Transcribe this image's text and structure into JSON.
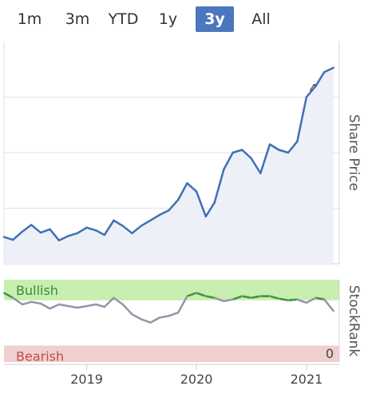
{
  "range_selector": {
    "buttons": [
      "1m",
      "3m",
      "YTD",
      "1y",
      "3y",
      "All"
    ],
    "selected": "3y"
  },
  "chart_data": [
    {
      "type": "line",
      "ylabel": "Share Price",
      "ylim": [
        100,
        500
      ],
      "yticks": [
        100,
        200,
        300,
        400
      ],
      "line_color": "#3f70b5",
      "fill_color": "#eef0f8",
      "x": [
        "2018-04-01",
        "2018-05-01",
        "2018-06-01",
        "2018-07-01",
        "2018-08-01",
        "2018-09-01",
        "2018-10-01",
        "2018-11-01",
        "2018-12-01",
        "2019-01-01",
        "2019-02-01",
        "2019-03-01",
        "2019-04-01",
        "2019-05-01",
        "2019-06-01",
        "2019-07-01",
        "2019-08-01",
        "2019-09-01",
        "2019-10-01",
        "2019-11-01",
        "2019-12-01",
        "2020-01-01",
        "2020-02-01",
        "2020-03-01",
        "2020-04-01",
        "2020-05-01",
        "2020-06-01",
        "2020-07-01",
        "2020-08-01",
        "2020-09-01",
        "2020-10-01",
        "2020-11-01",
        "2020-12-01",
        "2021-01-01",
        "2021-02-01",
        "2021-03-01",
        "2021-04-01"
      ],
      "y": [
        148,
        143,
        158,
        170,
        156,
        162,
        142,
        150,
        155,
        165,
        160,
        152,
        178,
        168,
        155,
        168,
        178,
        188,
        196,
        215,
        245,
        230,
        185,
        210,
        270,
        300,
        305,
        290,
        263,
        315,
        305,
        300,
        320,
        400,
        420,
        445,
        453
      ]
    },
    {
      "type": "line",
      "ylabel": "StockRank",
      "ylim": [
        0,
        100
      ],
      "yticks": [
        0
      ],
      "bands": [
        {
          "label": "Bullish",
          "from": 75,
          "to": 100,
          "color": "#c8eeb0"
        },
        {
          "label": "Bearish",
          "from": 0,
          "to": 20,
          "color": "#f0cfcf"
        }
      ],
      "line_color": "#8f98a6",
      "highlight_color": "#3a9a3a",
      "x": [
        "2018-04-01",
        "2018-05-01",
        "2018-06-01",
        "2018-07-01",
        "2018-08-01",
        "2018-09-01",
        "2018-10-01",
        "2018-11-01",
        "2018-12-01",
        "2019-01-01",
        "2019-02-01",
        "2019-03-01",
        "2019-04-01",
        "2019-05-01",
        "2019-06-01",
        "2019-07-01",
        "2019-08-01",
        "2019-09-01",
        "2019-10-01",
        "2019-11-01",
        "2019-12-01",
        "2020-01-01",
        "2020-02-01",
        "2020-03-01",
        "2020-04-01",
        "2020-05-01",
        "2020-06-01",
        "2020-07-01",
        "2020-08-01",
        "2020-09-01",
        "2020-10-01",
        "2020-11-01",
        "2020-12-01",
        "2021-01-01",
        "2021-02-01",
        "2021-03-01",
        "2021-04-01"
      ],
      "y": [
        84,
        78,
        70,
        73,
        71,
        65,
        70,
        68,
        66,
        68,
        70,
        67,
        78,
        70,
        58,
        52,
        48,
        54,
        56,
        60,
        80,
        84,
        80,
        78,
        74,
        76,
        80,
        78,
        80,
        80,
        77,
        75,
        76,
        72,
        78,
        76,
        62
      ]
    },
    {
      "type": "line",
      "xlim": [
        "2018-04-01",
        "2021-04-20"
      ],
      "xticks": [
        "2019",
        "2020",
        "2021"
      ]
    }
  ]
}
